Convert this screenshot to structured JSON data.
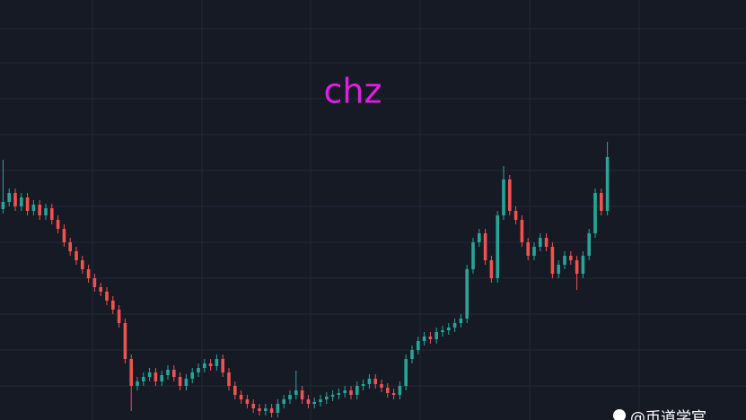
{
  "chart_data": {
    "type": "candlestick",
    "title": "chz",
    "watermark": "@币道学官",
    "up_color": "#26a69a",
    "down_color": "#ef5350",
    "ylim": [
      0,
      468
    ],
    "open": [
      235,
      243,
      253,
      238,
      248,
      233,
      240,
      228,
      236,
      223,
      213,
      198,
      188,
      178,
      168,
      158,
      148,
      143,
      133,
      123,
      108,
      68,
      38,
      43,
      48,
      53,
      43,
      50,
      56,
      48,
      38,
      46,
      53,
      58,
      63,
      60,
      68,
      53,
      38,
      28,
      23,
      18,
      13,
      10,
      13,
      8,
      18,
      23,
      28,
      33,
      23,
      18,
      20,
      23,
      26,
      28,
      30,
      33,
      28,
      38,
      40,
      46,
      40,
      36,
      30,
      28,
      38,
      68,
      78,
      88,
      93,
      90,
      98,
      100,
      103,
      108,
      113,
      168,
      198,
      208,
      178,
      158,
      228,
      268,
      233,
      223,
      198,
      183,
      193,
      203,
      193,
      163,
      173,
      183,
      178,
      163,
      183,
      208,
      253,
      233
    ],
    "high": [
      290,
      258,
      258,
      253,
      253,
      245,
      245,
      241,
      241,
      228,
      218,
      203,
      193,
      183,
      173,
      163,
      153,
      148,
      138,
      128,
      113,
      73,
      48,
      53,
      58,
      58,
      55,
      61,
      61,
      53,
      51,
      58,
      63,
      68,
      68,
      73,
      73,
      58,
      43,
      33,
      28,
      23,
      18,
      18,
      18,
      23,
      28,
      33,
      55,
      38,
      28,
      25,
      28,
      31,
      33,
      35,
      38,
      38,
      43,
      45,
      51,
      51,
      45,
      41,
      35,
      43,
      73,
      83,
      93,
      98,
      98,
      103,
      105,
      108,
      113,
      118,
      173,
      203,
      213,
      213,
      183,
      233,
      283,
      273,
      238,
      228,
      203,
      198,
      208,
      208,
      198,
      178,
      188,
      188,
      183,
      188,
      213,
      258,
      258,
      310
    ],
    "low": [
      230,
      238,
      233,
      233,
      228,
      228,
      223,
      223,
      218,
      208,
      193,
      183,
      173,
      163,
      153,
      143,
      138,
      128,
      118,
      103,
      63,
      10,
      33,
      38,
      43,
      38,
      38,
      45,
      43,
      33,
      33,
      41,
      48,
      53,
      55,
      55,
      48,
      33,
      23,
      18,
      13,
      8,
      5,
      5,
      3,
      3,
      13,
      18,
      23,
      18,
      13,
      13,
      15,
      18,
      21,
      23,
      25,
      23,
      23,
      33,
      35,
      35,
      31,
      25,
      23,
      23,
      33,
      63,
      73,
      83,
      85,
      85,
      93,
      95,
      98,
      103,
      108,
      163,
      193,
      173,
      153,
      153,
      223,
      228,
      218,
      193,
      178,
      178,
      188,
      188,
      158,
      158,
      168,
      173,
      145,
      158,
      178,
      203,
      228,
      228
    ],
    "close": [
      243,
      253,
      238,
      248,
      233,
      240,
      228,
      236,
      223,
      213,
      198,
      188,
      178,
      168,
      158,
      148,
      143,
      133,
      123,
      108,
      68,
      38,
      43,
      48,
      53,
      43,
      50,
      56,
      48,
      38,
      46,
      53,
      58,
      63,
      60,
      68,
      53,
      38,
      28,
      23,
      18,
      13,
      10,
      13,
      8,
      18,
      23,
      28,
      33,
      23,
      18,
      20,
      23,
      26,
      28,
      30,
      33,
      28,
      38,
      40,
      46,
      40,
      36,
      30,
      28,
      38,
      68,
      78,
      88,
      93,
      90,
      98,
      100,
      103,
      108,
      113,
      168,
      198,
      208,
      178,
      158,
      228,
      268,
      233,
      223,
      198,
      183,
      193,
      203,
      193,
      163,
      173,
      183,
      178,
      163,
      183,
      208,
      253,
      233,
      293
    ]
  }
}
